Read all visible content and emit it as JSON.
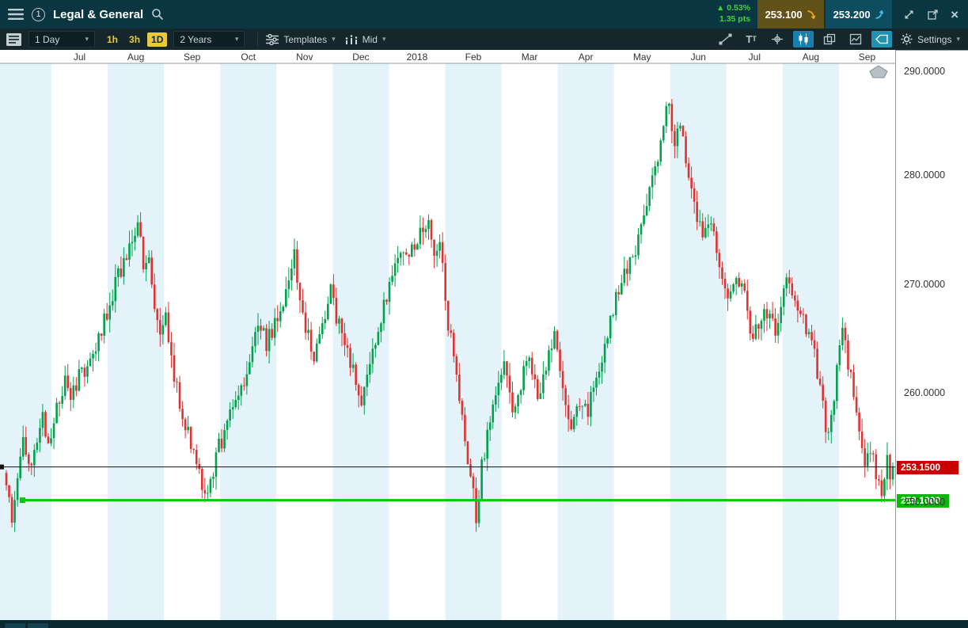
{
  "topbar": {
    "chart_number": "1",
    "instrument": "Legal & General",
    "change_pct": "▲ 0.53%",
    "change_pts": "1.35 pts",
    "sell_price": "253.100",
    "buy_price": "253.200",
    "close_label": "×"
  },
  "toolbar": {
    "interval": "1 Day",
    "quick_intervals": [
      {
        "label": "1h"
      },
      {
        "label": "3h"
      },
      {
        "label": "1D"
      }
    ],
    "active_quick": "1D",
    "range": "2 Years",
    "templates": "Templates",
    "price_type": "Mid",
    "settings": "Settings"
  },
  "chart": {
    "y_ticks": [
      "290.0000",
      "280.0000",
      "270.0000",
      "260.0000",
      "250.0000"
    ],
    "current_price_label": "253.1500",
    "support_price_label": "250.1000"
  },
  "chart_data": {
    "type": "candlestick",
    "instrument": "Legal & General",
    "interval": "1 Day",
    "range": "2 Years",
    "months": [
      {
        "label": "",
        "shaded": true
      },
      {
        "label": "Jul",
        "shaded": false
      },
      {
        "label": "Aug",
        "shaded": true
      },
      {
        "label": "Sep",
        "shaded": false
      },
      {
        "label": "Oct",
        "shaded": true
      },
      {
        "label": "Nov",
        "shaded": false
      },
      {
        "label": "Dec",
        "shaded": true
      },
      {
        "label": "2018",
        "shaded": false
      },
      {
        "label": "Feb",
        "shaded": true
      },
      {
        "label": "Mar",
        "shaded": false
      },
      {
        "label": "Apr",
        "shaded": true
      },
      {
        "label": "May",
        "shaded": false
      },
      {
        "label": "Jun",
        "shaded": true
      },
      {
        "label": "Jul",
        "shaded": false
      },
      {
        "label": "Aug",
        "shaded": true
      },
      {
        "label": "Sep",
        "shaded": false
      }
    ],
    "y_axis": {
      "min": 246,
      "max": 291,
      "ticks": [
        290,
        280,
        270,
        260,
        250
      ],
      "tick_labels": [
        "290.0000",
        "280.0000",
        "270.0000",
        "260.0000",
        "250.0000"
      ]
    },
    "days": 318,
    "seed": 20180913,
    "current_price": 253.15,
    "support_level": 250.1,
    "price_path_anchors": [
      [
        0,
        252
      ],
      [
        2,
        248.5
      ],
      [
        4,
        252.5
      ],
      [
        6,
        255.5
      ],
      [
        8,
        253.5
      ],
      [
        11,
        255
      ],
      [
        13,
        257.5
      ],
      [
        15,
        255.5
      ],
      [
        18,
        258.5
      ],
      [
        21,
        261.5
      ],
      [
        23,
        259
      ],
      [
        26,
        261.5
      ],
      [
        29,
        262.5
      ],
      [
        33,
        265
      ],
      [
        36,
        267.5
      ],
      [
        40,
        270.5
      ],
      [
        44,
        273.5
      ],
      [
        47,
        276
      ],
      [
        49,
        271
      ],
      [
        51,
        273
      ],
      [
        53,
        268
      ],
      [
        55,
        265
      ],
      [
        57,
        266.5
      ],
      [
        59,
        263
      ],
      [
        62,
        259
      ],
      [
        65,
        256
      ],
      [
        68,
        253
      ],
      [
        70,
        251.5
      ],
      [
        72,
        250.6
      ],
      [
        74,
        253
      ],
      [
        76,
        255
      ],
      [
        79,
        257
      ],
      [
        82,
        259.5
      ],
      [
        86,
        262
      ],
      [
        90,
        266.5
      ],
      [
        93,
        264.5
      ],
      [
        96,
        266
      ],
      [
        99,
        268
      ],
      [
        103,
        272.5
      ],
      [
        107,
        266
      ],
      [
        110,
        263.5
      ],
      [
        113,
        266
      ],
      [
        116,
        269.5
      ],
      [
        118,
        267
      ],
      [
        121,
        264.5
      ],
      [
        124,
        262
      ],
      [
        127,
        259.5
      ],
      [
        130,
        262.5
      ],
      [
        133,
        266
      ],
      [
        136,
        269
      ],
      [
        139,
        271
      ],
      [
        142,
        272.5
      ],
      [
        145,
        273
      ],
      [
        148,
        274.5
      ],
      [
        151,
        276
      ],
      [
        153,
        272.5
      ],
      [
        155,
        274
      ],
      [
        157,
        268.5
      ],
      [
        158,
        266
      ],
      [
        160,
        263.5
      ],
      [
        163,
        258
      ],
      [
        166,
        252
      ],
      [
        168,
        248.8
      ],
      [
        170,
        253
      ],
      [
        172,
        256.5
      ],
      [
        175,
        260
      ],
      [
        178,
        262.5
      ],
      [
        181,
        257.5
      ],
      [
        184,
        261
      ],
      [
        187,
        263.5
      ],
      [
        190,
        259
      ],
      [
        193,
        262
      ],
      [
        196,
        265.5
      ],
      [
        199,
        261
      ],
      [
        202,
        257
      ],
      [
        205,
        259
      ],
      [
        208,
        258.5
      ],
      [
        212,
        262
      ],
      [
        215,
        265
      ],
      [
        218,
        268.5
      ],
      [
        221,
        271
      ],
      [
        224,
        272
      ],
      [
        228,
        276
      ],
      [
        231,
        279.5
      ],
      [
        234,
        283
      ],
      [
        237,
        287
      ],
      [
        239,
        282.5
      ],
      [
        241,
        285
      ],
      [
        243,
        281
      ],
      [
        246,
        277.5
      ],
      [
        249,
        273.5
      ],
      [
        252,
        276
      ],
      [
        255,
        272
      ],
      [
        258,
        268
      ],
      [
        261,
        271
      ],
      [
        264,
        268.5
      ],
      [
        267,
        265
      ],
      [
        271,
        268
      ],
      [
        275,
        265.5
      ],
      [
        279,
        270
      ],
      [
        282,
        268
      ],
      [
        285,
        266.5
      ],
      [
        288,
        265
      ],
      [
        290,
        262
      ],
      [
        292,
        258.5
      ],
      [
        294,
        255.5
      ],
      [
        297,
        262
      ],
      [
        299,
        266
      ],
      [
        302,
        261
      ],
      [
        305,
        257
      ],
      [
        307,
        253.5
      ],
      [
        309,
        255
      ],
      [
        311,
        252
      ],
      [
        313,
        250.9
      ],
      [
        315,
        253.5
      ],
      [
        316,
        252.3
      ],
      [
        317,
        253.15
      ]
    ],
    "colors": {
      "up": "#00a24d",
      "down": "#e13232",
      "support_line": "#00cc00",
      "current_line": "#111111",
      "band": "#e3f3f9",
      "current_tag_bg": "#c90000",
      "support_tag_bg": "#0db50d"
    }
  }
}
